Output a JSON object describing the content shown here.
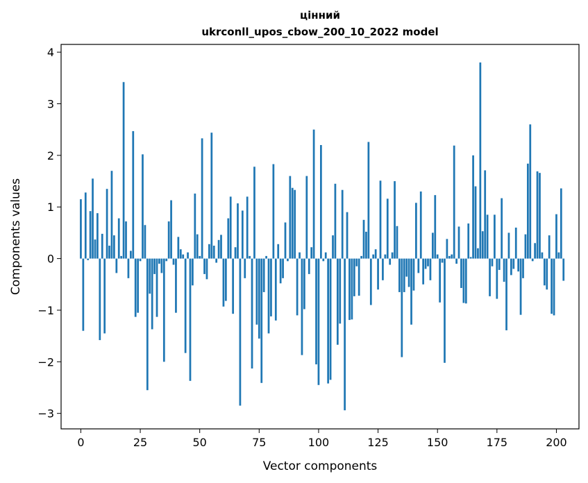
{
  "chart_data": {
    "type": "bar",
    "title_line1": "цінний",
    "title_line2": "ukrconll_upos_cbow_200_10_2022 model",
    "xlabel": "Vector components",
    "ylabel": "Components values",
    "xlim": [
      -8.3,
      209.5
    ],
    "ylim": [
      -3.3,
      4.15
    ],
    "xticks": [
      0,
      25,
      50,
      75,
      100,
      125,
      150,
      175,
      200
    ],
    "yticks": [
      -3,
      -2,
      -1,
      0,
      1,
      2,
      3,
      4
    ],
    "bar_color": "#1f77b4",
    "values": [
      1.15,
      -1.4,
      1.28,
      -0.03,
      0.92,
      1.55,
      0.37,
      0.88,
      -1.58,
      0.48,
      -1.45,
      1.35,
      0.25,
      1.7,
      0.45,
      -0.28,
      0.78,
      0.05,
      3.42,
      0.72,
      -0.38,
      0.15,
      2.47,
      -1.13,
      -1.05,
      -0.05,
      2.02,
      0.65,
      -2.55,
      -0.68,
      -1.37,
      -0.3,
      -1.13,
      -0.1,
      -0.28,
      -2.0,
      -0.05,
      0.72,
      1.13,
      -0.12,
      -1.05,
      0.42,
      0.18,
      0.08,
      -1.83,
      0.12,
      -2.37,
      -0.52,
      1.26,
      0.47,
      0.05,
      2.33,
      -0.3,
      -0.4,
      0.28,
      2.44,
      0.25,
      -0.08,
      0.36,
      0.46,
      -0.93,
      -0.82,
      0.78,
      1.2,
      -1.07,
      0.22,
      1.07,
      -2.85,
      0.93,
      -0.38,
      1.2,
      0.05,
      -2.13,
      1.78,
      -1.28,
      -1.55,
      -2.41,
      -0.65,
      0.05,
      -1.45,
      -1.12,
      1.83,
      -1.2,
      0.28,
      -0.48,
      -0.38,
      0.7,
      -0.05,
      1.6,
      1.37,
      1.33,
      -1.1,
      0.12,
      -1.87,
      -0.98,
      1.6,
      -0.3,
      0.22,
      2.5,
      -2.05,
      -2.45,
      2.2,
      -0.05,
      0.12,
      -2.42,
      -2.35,
      0.45,
      1.45,
      -1.67,
      -1.26,
      1.33,
      -2.94,
      0.9,
      -1.19,
      -1.18,
      -0.73,
      -0.15,
      -0.72,
      0.05,
      0.75,
      0.52,
      2.26,
      -0.9,
      0.08,
      0.18,
      -0.6,
      1.51,
      -0.42,
      0.08,
      1.16,
      -0.12,
      0.12,
      1.5,
      0.63,
      -0.65,
      -1.91,
      -0.65,
      -0.35,
      -0.55,
      -1.28,
      -0.62,
      1.08,
      -0.28,
      1.3,
      -0.5,
      -0.2,
      -0.15,
      -0.42,
      0.5,
      1.23,
      0.08,
      -0.85,
      -0.08,
      -2.02,
      0.38,
      0.05,
      0.08,
      2.19,
      -0.1,
      0.62,
      -0.57,
      -0.86,
      -0.87,
      0.68,
      0.03,
      2.0,
      1.4,
      0.2,
      3.8,
      0.53,
      1.71,
      0.85,
      -0.73,
      -0.15,
      0.85,
      -0.78,
      -0.22,
      1.17,
      -0.45,
      -1.39,
      0.5,
      -0.32,
      -0.2,
      0.6,
      -0.25,
      -1.09,
      -0.38,
      0.47,
      1.84,
      2.6,
      -0.05,
      0.3,
      1.69,
      1.66,
      0.12,
      -0.52,
      -0.6,
      0.45,
      -1.07,
      -1.1,
      0.86,
      0.12,
      1.36,
      -0.43
    ]
  }
}
